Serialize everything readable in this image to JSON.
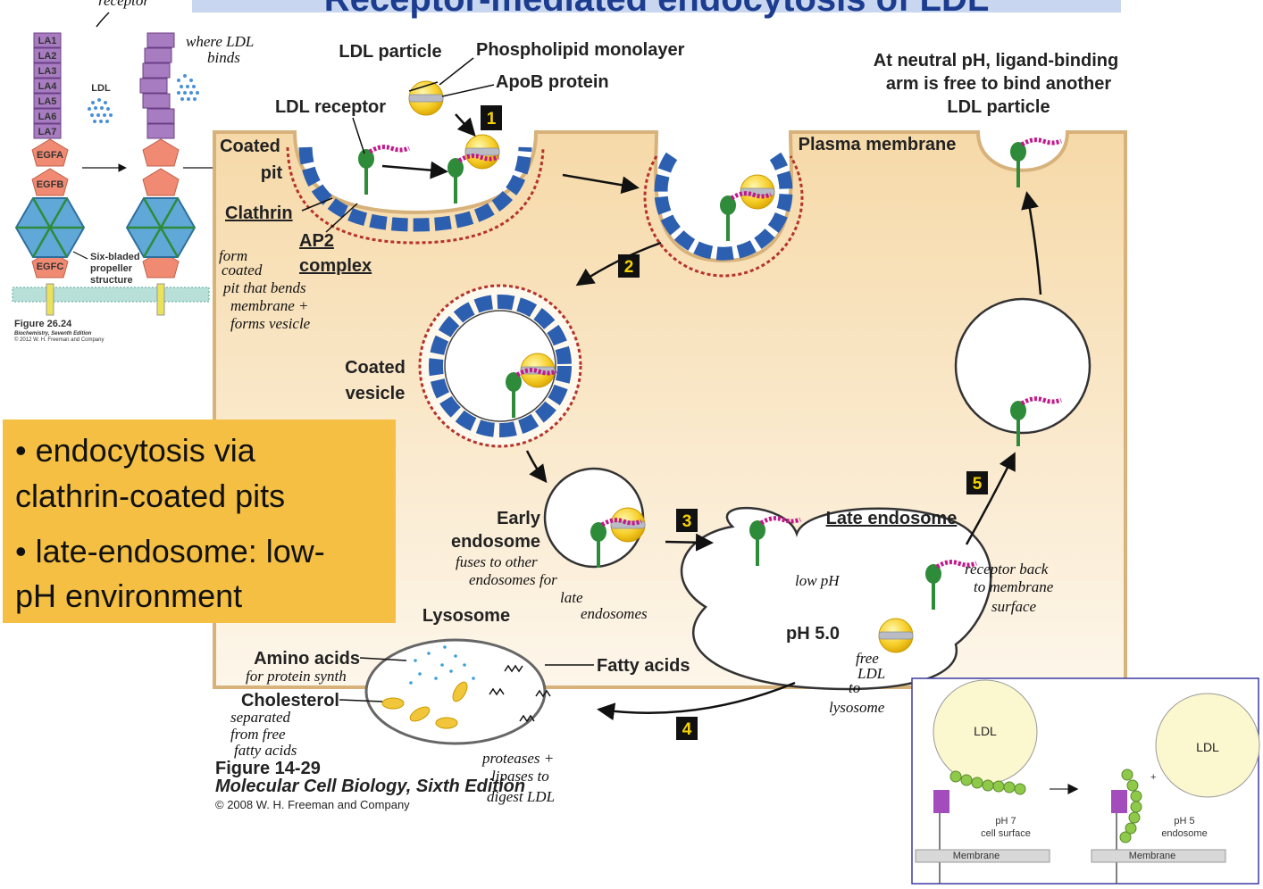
{
  "title": "Receptor-mediated endocytosis of LDL",
  "left_figure": {
    "handwritten_receptor": "receptor",
    "domains": [
      "LA1",
      "LA2",
      "LA3",
      "LA4",
      "LA5",
      "LA6",
      "LA7",
      "EGFA",
      "EGFB",
      "EGFC"
    ],
    "ldl": "LDL",
    "where_binds": [
      "where LDL",
      "binds"
    ],
    "propeller": [
      "Six-bladed",
      "propeller",
      "structure"
    ],
    "caption": [
      "Figure 26.24",
      "Biochemistry, Seventh Edition",
      "© 2012 W. H. Freeman and Company"
    ]
  },
  "main_figure": {
    "ldl_particle": "LDL particle",
    "phospholipid": "Phospholipid monolayer",
    "apob": "ApoB protein",
    "ldl_receptor": "LDL receptor",
    "steps": [
      "1",
      "2",
      "3",
      "4",
      "5"
    ],
    "coated_pit": [
      "Coated",
      "pit"
    ],
    "plasma_membrane": "Plasma membrane",
    "neutral_ph": [
      "At neutral pH, ligand-binding",
      "arm is free to bind another",
      "LDL particle"
    ],
    "clathrin": "Clathrin",
    "ap2": [
      "AP2",
      "complex"
    ],
    "coated_pit_note": [
      "form",
      "coated",
      "pit that bends",
      "membrane +",
      "forms vesicle"
    ],
    "coated_vesicle": [
      "Coated",
      "vesicle"
    ],
    "early_endosome": [
      "Early",
      "endosome"
    ],
    "early_note": [
      "fuses to other",
      "endosomes for",
      "late",
      "endosomes"
    ],
    "late_endosome": "Late endosome",
    "receptor_note": [
      "receptor back",
      "to membrane",
      "surface"
    ],
    "low_ph": "low pH",
    "ph": "pH 5.0",
    "free_ldl": [
      "free",
      "LDL",
      "to",
      "lysosome"
    ],
    "lysosome": "Lysosome",
    "amino_acids": "Amino acids",
    "amino_note": "for protein synth",
    "cholesterol": "Cholesterol",
    "cholesterol_note": [
      "separated",
      "from free",
      "fatty acids"
    ],
    "fatty_acids": "Fatty acids",
    "lysosome_note": [
      "proteases +",
      "lipases to",
      "digest LDL"
    ],
    "caption": [
      "Figure 14-29",
      "Molecular Cell Biology, Sixth Edition",
      "© 2008 W. H. Freeman and Company"
    ]
  },
  "notes": {
    "bullets": [
      [
        "• endocytosis via",
        "clathrin-coated pits"
      ],
      [
        "• late-endosome: low-",
        "pH environment"
      ]
    ]
  },
  "inset": {
    "ldl_left": "LDL",
    "ldl_right": "LDL",
    "left_state": [
      "pH 7",
      "cell surface"
    ],
    "right_state": [
      "pH 5",
      "endosome"
    ],
    "membrane_left": "Membrane",
    "membrane_right": "Membrane"
  }
}
